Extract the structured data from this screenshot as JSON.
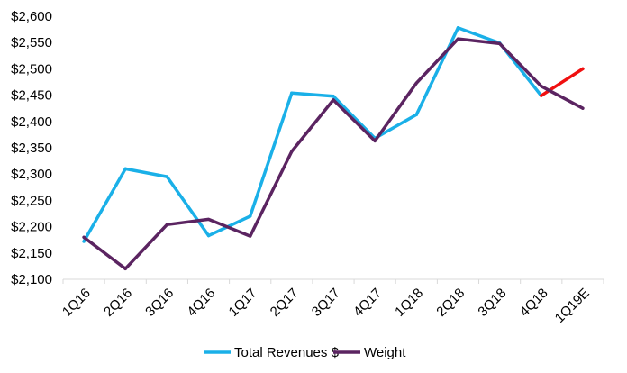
{
  "chart_data": {
    "type": "line",
    "title": "",
    "xlabel": "",
    "ylabel": "",
    "categories": [
      "1Q16",
      "2Q16",
      "3Q16",
      "4Q16",
      "1Q17",
      "2Q17",
      "3Q17",
      "4Q17",
      "1Q18",
      "2Q18",
      "3Q18",
      "4Q18",
      "1Q19E"
    ],
    "ylim": [
      2100,
      2600
    ],
    "yticks": [
      2100,
      2150,
      2200,
      2250,
      2300,
      2350,
      2400,
      2450,
      2500,
      2550,
      2600
    ],
    "ytick_labels": [
      "$2,100",
      "$2,150",
      "$2,200",
      "$2,250",
      "$2,300",
      "$2,350",
      "$2,400",
      "$2,450",
      "$2,500",
      "$2,550",
      "$2,600"
    ],
    "grid": false,
    "legend_position": "bottom",
    "series": [
      {
        "name": "Total Revenues $",
        "color": "#1AB0E8",
        "values": [
          2172,
          2310,
          2295,
          2183,
          2220,
          2454,
          2448,
          2368,
          2413,
          2578,
          2549,
          2449,
          2500
        ],
        "segment_colors": [
          "#1AB0E8",
          "#1AB0E8",
          "#1AB0E8",
          "#1AB0E8",
          "#1AB0E8",
          "#1AB0E8",
          "#1AB0E8",
          "#1AB0E8",
          "#1AB0E8",
          "#1AB0E8",
          "#1AB0E8",
          "#F01010"
        ]
      },
      {
        "name": "Weight",
        "color": "#5B2461",
        "values": [
          2180,
          2120,
          2204,
          2214,
          2182,
          2343,
          2441,
          2363,
          2473,
          2557,
          2548,
          2467,
          2425
        ]
      }
    ]
  }
}
